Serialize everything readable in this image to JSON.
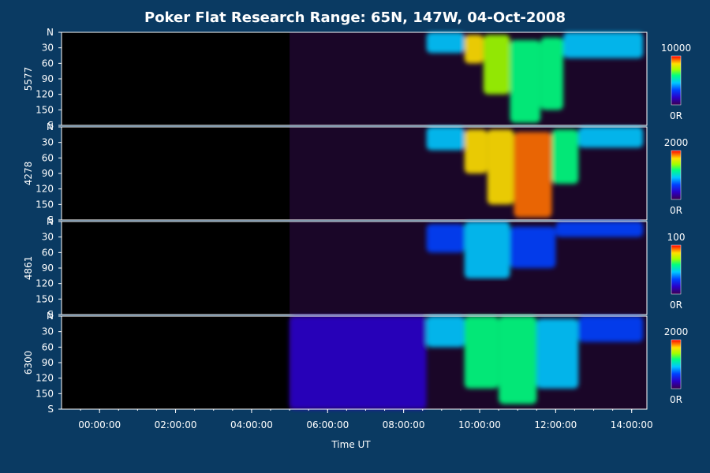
{
  "chart_data": {
    "type": "heatmap",
    "title": "Poker Flat Research Range: 65N, 147W, 04-Oct-2008",
    "xlabel": "Time UT",
    "x_ticks": [
      "00:00:00",
      "02:00:00",
      "04:00:00",
      "06:00:00",
      "08:00:00",
      "10:00:00",
      "12:00:00",
      "14:00:00"
    ],
    "x_tick_hours": [
      0,
      2,
      4,
      6,
      8,
      10,
      12,
      14
    ],
    "x_range_hours": [
      -1.0,
      14.4
    ],
    "y_ticks": [
      "N",
      "30",
      "60",
      "90",
      "120",
      "150",
      "S"
    ],
    "y_tick_values": [
      0,
      30,
      60,
      90,
      120,
      150,
      180
    ],
    "y_range": [
      0,
      180
    ],
    "colorscale": [
      "#3a0050",
      "#2a00c8",
      "#0040ff",
      "#00c8ff",
      "#00ff80",
      "#a0ff00",
      "#ffe000",
      "#ff7000",
      "#ff0000"
    ],
    "panels": [
      {
        "name": "5577",
        "cbar_max": "10000",
        "cbar_min": "0R",
        "data_start_hour": 5.0,
        "events": [
          {
            "t0": 8.6,
            "t1": 9.6,
            "y0": 0,
            "y1": 40,
            "level": 0.35
          },
          {
            "t0": 9.6,
            "t1": 10.1,
            "y0": 5,
            "y1": 60,
            "level": 0.7
          },
          {
            "t0": 10.1,
            "t1": 10.8,
            "y0": 5,
            "y1": 120,
            "level": 0.6
          },
          {
            "t0": 10.8,
            "t1": 11.6,
            "y0": 15,
            "y1": 175,
            "level": 0.55
          },
          {
            "t0": 11.6,
            "t1": 12.2,
            "y0": 10,
            "y1": 150,
            "level": 0.5
          },
          {
            "t0": 12.2,
            "t1": 14.3,
            "y0": 0,
            "y1": 50,
            "level": 0.35
          }
        ]
      },
      {
        "name": "4278",
        "cbar_max": "2000",
        "cbar_min": "0R",
        "data_start_hour": 5.0,
        "events": [
          {
            "t0": 8.6,
            "t1": 9.6,
            "y0": 0,
            "y1": 45,
            "level": 0.4
          },
          {
            "t0": 9.6,
            "t1": 10.2,
            "y0": 5,
            "y1": 90,
            "level": 0.8
          },
          {
            "t0": 10.2,
            "t1": 10.9,
            "y0": 5,
            "y1": 150,
            "level": 0.7
          },
          {
            "t0": 10.9,
            "t1": 11.9,
            "y0": 10,
            "y1": 175,
            "level": 0.9
          },
          {
            "t0": 11.9,
            "t1": 12.6,
            "y0": 5,
            "y1": 110,
            "level": 0.55
          },
          {
            "t0": 12.6,
            "t1": 14.3,
            "y0": 0,
            "y1": 40,
            "level": 0.4
          }
        ]
      },
      {
        "name": "4861",
        "cbar_max": "100",
        "cbar_min": "0R",
        "data_start_hour": 5.0,
        "events": [
          {
            "t0": 8.6,
            "t1": 9.6,
            "y0": 5,
            "y1": 60,
            "level": 0.3
          },
          {
            "t0": 9.6,
            "t1": 10.8,
            "y0": 0,
            "y1": 110,
            "level": 0.4
          },
          {
            "t0": 10.8,
            "t1": 12.0,
            "y0": 10,
            "y1": 90,
            "level": 0.3
          },
          {
            "t0": 12.0,
            "t1": 14.3,
            "y0": 0,
            "y1": 30,
            "level": 0.25
          }
        ]
      },
      {
        "name": "6300",
        "cbar_max": "2000",
        "cbar_min": "0R",
        "data_start_hour": 5.0,
        "events": [
          {
            "t0": 5.0,
            "t1": 8.6,
            "y0": 0,
            "y1": 180,
            "level": 0.12
          },
          {
            "t0": 8.6,
            "t1": 9.6,
            "y0": 0,
            "y1": 60,
            "level": 0.35
          },
          {
            "t0": 9.6,
            "t1": 10.5,
            "y0": 0,
            "y1": 140,
            "level": 0.5
          },
          {
            "t0": 10.5,
            "t1": 11.5,
            "y0": 0,
            "y1": 170,
            "level": 0.5
          },
          {
            "t0": 11.5,
            "t1": 12.6,
            "y0": 5,
            "y1": 140,
            "level": 0.4
          },
          {
            "t0": 12.6,
            "t1": 14.3,
            "y0": 0,
            "y1": 50,
            "level": 0.3
          }
        ]
      }
    ]
  }
}
